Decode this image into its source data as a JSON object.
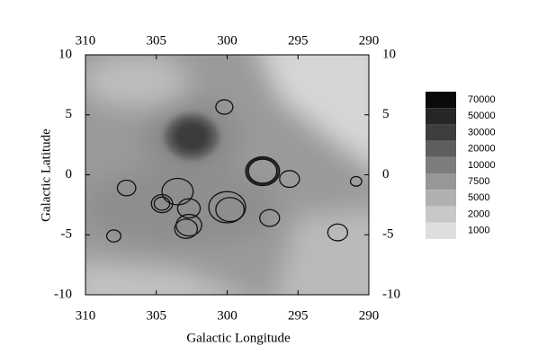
{
  "chart_data": {
    "type": "sky-map",
    "xlabel": "Galactic Longitude",
    "ylabel": "Galactic Latitude",
    "xlim": [
      310,
      290
    ],
    "ylim": [
      -10,
      10
    ],
    "xticks": [
      310,
      305,
      300,
      295,
      290
    ],
    "yticks": [
      10,
      5,
      0,
      -5,
      -10
    ],
    "colorbar": {
      "levels": [
        70000,
        50000,
        30000,
        20000,
        10000,
        7500,
        5000,
        2000,
        1000
      ],
      "colors": [
        "#0a0a0a",
        "#262626",
        "#3e3e3e",
        "#5e5e5e",
        "#7d7d7d",
        "#979797",
        "#b0b0b0",
        "#c8c8c8",
        "#dedede"
      ]
    },
    "circle_color": "#111111",
    "circles": {
      "l": [
        300.2,
        297.5,
        297.5,
        297.5,
        295.6,
        290.9,
        307.1,
        303.5,
        304.6,
        304.6,
        302.7,
        300.0,
        299.8,
        297.0,
        302.7,
        302.9,
        308.0,
        292.2
      ],
      "b": [
        5.65,
        0.3,
        0.3,
        0.3,
        -0.35,
        -0.55,
        -1.1,
        -1.4,
        -2.4,
        -2.4,
        -2.8,
        -2.7,
        -2.9,
        -3.6,
        -4.2,
        -4.5,
        -5.1,
        -4.8
      ],
      "r": [
        0.6,
        1.0,
        1.1,
        1.2,
        0.7,
        0.4,
        0.65,
        1.1,
        0.75,
        0.55,
        0.8,
        1.3,
        1.0,
        0.7,
        0.9,
        0.8,
        0.5,
        0.7
      ]
    }
  }
}
